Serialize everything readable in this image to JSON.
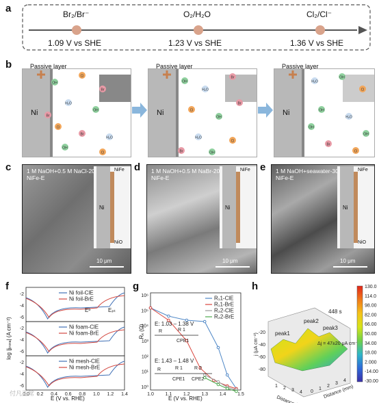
{
  "panels": {
    "a": "a",
    "b": "b",
    "c": "c",
    "d": "d",
    "e": "e",
    "f": "f",
    "g": "g",
    "h": "h"
  },
  "potentials": [
    {
      "couple": "Br₂/Br⁻",
      "value": "1.09 V vs SHE"
    },
    {
      "couple": "O₂/H₂O",
      "value": "1.23 V vs SHE"
    },
    {
      "couple": "Cl₂/Cl⁻",
      "value": "1.36 V vs SHE"
    }
  ],
  "schematic": {
    "passive_label": "Passive layer",
    "metal": "Ni",
    "ions": {
      "oh": "OH",
      "h2o": "H₂O",
      "cl": "Cl",
      "br": "Br"
    },
    "colors": {
      "oh": "#8fd19e",
      "cl": "#f2a65a",
      "br": "#e89aa6",
      "h2o": "#c9dcf0",
      "ni": "#b8b8b8",
      "arrow": "#8ab6dc"
    }
  },
  "sem": {
    "c": {
      "line1": "1 M NaOH+0.5 M NaCl-20 h",
      "line2": "NiFe-E",
      "scale": "10 μm"
    },
    "d": {
      "line1": "1 M NaOH+0.5 M NaBr-20 h",
      "line2": "NiFe-E",
      "scale": "10 μm"
    },
    "e": {
      "line1": "1 M NaOH+seawater-30 h",
      "line2": "NiFe-E",
      "scale": "10 μm"
    },
    "inset": {
      "nife": "NiFe",
      "ni": "Ni",
      "nio": "NiO"
    }
  },
  "chart_f": {
    "ylabel": "log |jₚₒᵣₐ| (A cm⁻²)",
    "xlabel": "E (V vs. RHE)",
    "xticks": [
      "0.0",
      "0.2",
      "0.4",
      "0.6",
      "0.8",
      "1.0",
      "1.2",
      "1.4"
    ],
    "yticks": [
      "-2",
      "-4",
      "-6"
    ],
    "annotations": {
      "eb": "Eᵇ",
      "ept": "Eₚₜ"
    },
    "groups": [
      {
        "legend": [
          "Ni foil-ClE",
          "Ni foil-BrE"
        ]
      },
      {
        "legend": [
          "Ni foam-ClE",
          "Ni foam-BrE"
        ]
      },
      {
        "legend": [
          "Ni mesh-ClE",
          "Ni mesh-BrE"
        ]
      }
    ],
    "colors": {
      "cle": "#3f6fb5",
      "bre": "#d2463e"
    }
  },
  "chart_g": {
    "ylabel": "Rₓ (Ω)",
    "xlabel": "E (V vs. RHE)",
    "xticks": [
      "1.0",
      "1.1",
      "1.2",
      "1.3",
      "1.4",
      "1.5"
    ],
    "yticks": [
      "10⁶",
      "10⁵",
      "10⁴",
      "10³",
      "10²",
      "10¹",
      "10⁰"
    ],
    "legend": [
      "R₁1-ClE",
      "R₁1-BrE",
      "R₂2-ClE",
      "R₂2-BrE"
    ],
    "colors": [
      "#4d86c6",
      "#d8433b",
      "#9a9a9a",
      "#4caa4c"
    ],
    "range1": "E: 1.03 – 1.38 V",
    "range2": "E: 1.43 – 1.48 V",
    "circuit1": {
      "r": "R",
      "r1": "R 1",
      "cpe": "CPE1"
    },
    "circuit2": {
      "r": "R",
      "r1": "R 1",
      "r2": "R 2",
      "cpe1": "CPE1",
      "cpe2": "CPE2"
    }
  },
  "chart_h": {
    "zlabel": "j (μA cm⁻²)",
    "xlabel": "Distance (mm)",
    "ylabel": "Distance (mm)",
    "time": "448 s",
    "peaks": [
      "peak1",
      "peak2",
      "peak3"
    ],
    "delta": "Δj = 47±20 μA cm⁻²",
    "zticks": [
      "-20",
      "-40",
      "-60",
      "-80"
    ],
    "xticks": [
      "1",
      "2",
      "3",
      "4"
    ],
    "yticks": [
      "0",
      "1",
      "2",
      "3",
      "4"
    ],
    "colorbar": [
      "130.0",
      "114.0",
      "98.00",
      "82.00",
      "66.00",
      "50.00",
      "34.00",
      "18.00",
      "2.000",
      "-14.00",
      "-30.00"
    ]
  },
  "watermark": "付凡正常"
}
